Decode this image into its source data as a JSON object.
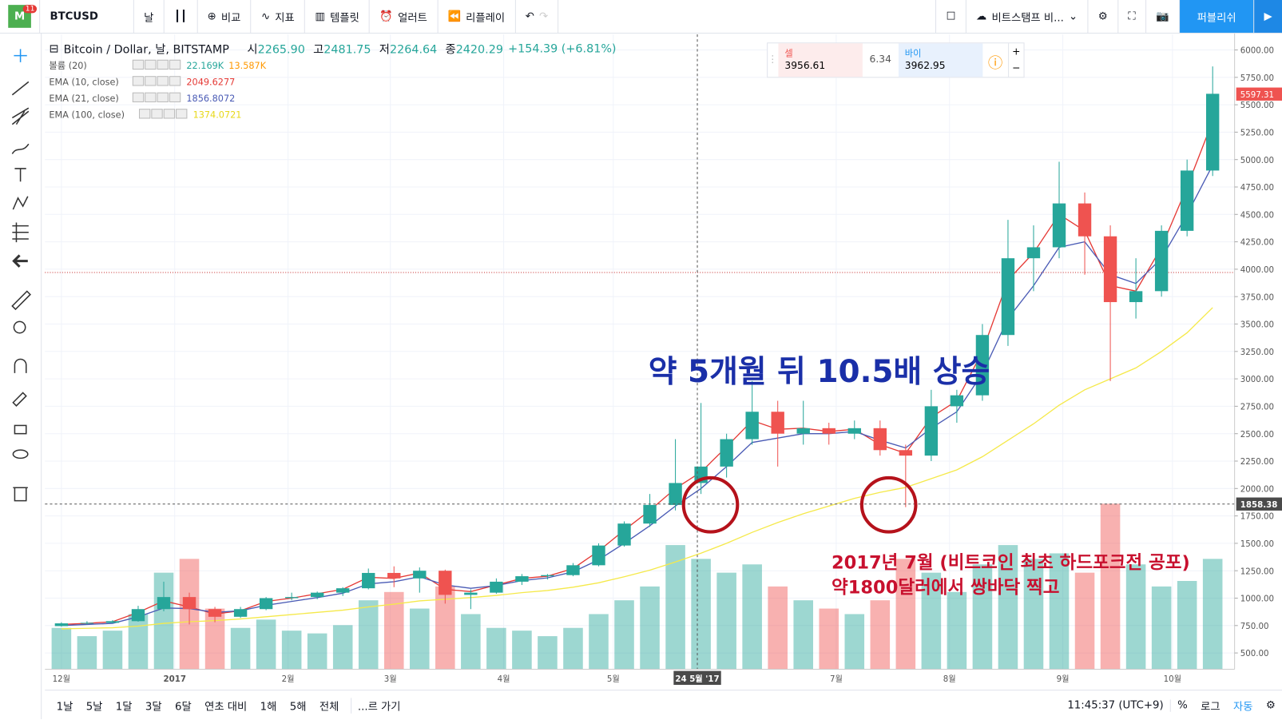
{
  "toolbar": {
    "logo": "M",
    "badge": "11",
    "symbol": "BTCUSD",
    "interval": "날",
    "compare": "비교",
    "indicators": "지표",
    "templates": "템플릿",
    "alert": "얼러트",
    "replay": "리플레이",
    "exchange": "비트스탬프 비...",
    "publish": "퍼블리쉬"
  },
  "legend": {
    "title": "Bitcoin / Dollar, 날, BITSTAMP",
    "ohlc": [
      {
        "label": "시",
        "value": "2265.90"
      },
      {
        "label": "고",
        "value": "2481.75"
      },
      {
        "label": "저",
        "value": "2264.64"
      },
      {
        "label": "종",
        "value": "2420.29"
      }
    ],
    "change": "+154.39 (+6.81%)",
    "indicators": [
      {
        "name": "볼륨 (20)",
        "values": [
          "22.169K",
          "13.587K"
        ]
      },
      {
        "name": "EMA (10, close)",
        "values": [
          "2049.6277"
        ]
      },
      {
        "name": "EMA (21, close)",
        "values": [
          "1856.8072"
        ]
      },
      {
        "name": "EMA (100, close)",
        "values": [
          "1374.0721"
        ]
      }
    ]
  },
  "trade": {
    "sell_label": "셀",
    "sell": "3956.61",
    "spread": "6.34",
    "buy_label": "바이",
    "buy": "3962.95"
  },
  "chart_data": {
    "type": "candlestick",
    "x": [
      0,
      7,
      14,
      21,
      28,
      35,
      42,
      49,
      56,
      63,
      70,
      77,
      84,
      91,
      98,
      105,
      112,
      119,
      126,
      133,
      140,
      147,
      154,
      161,
      168,
      175,
      182,
      189,
      196,
      203,
      210,
      217,
      224,
      231,
      238,
      245,
      252,
      259,
      266,
      273,
      280,
      287,
      294,
      301,
      308,
      315
    ],
    "open": [
      745,
      770,
      775,
      790,
      900,
      1010,
      900,
      830,
      900,
      1000,
      1010,
      1050,
      1090,
      1230,
      1180,
      1250,
      1030,
      1050,
      1150,
      1200,
      1210,
      1300,
      1480,
      1680,
      1850,
      2050,
      2200,
      2450,
      2700,
      2500,
      2550,
      2500,
      2550,
      2350,
      2300,
      2750,
      2850,
      3400,
      4100,
      4200,
      4600,
      4300,
      3700,
      3800,
      4350,
      4900
    ],
    "high": [
      780,
      790,
      800,
      930,
      1150,
      1050,
      920,
      920,
      1010,
      1050,
      1060,
      1100,
      1270,
      1290,
      1280,
      1260,
      1080,
      1180,
      1220,
      1220,
      1320,
      1500,
      1700,
      1950,
      2450,
      2780,
      2500,
      2980,
      2800,
      2800,
      2600,
      2620,
      2620,
      2400,
      2900,
      2900,
      3500,
      4450,
      4400,
      4980,
      4700,
      4400,
      4100,
      4400,
      5000,
      5850
    ],
    "low": [
      740,
      760,
      770,
      785,
      880,
      760,
      780,
      820,
      890,
      980,
      990,
      1020,
      1080,
      1100,
      1050,
      950,
      900,
      1040,
      1120,
      1170,
      1200,
      1290,
      1470,
      1650,
      1800,
      1950,
      2100,
      2400,
      2200,
      2400,
      2400,
      2450,
      2300,
      1830,
      2250,
      2600,
      2800,
      3300,
      3800,
      4100,
      3950,
      2980,
      3550,
      3750,
      4300,
      4850
    ],
    "close": [
      770,
      775,
      790,
      900,
      1010,
      900,
      830,
      900,
      1000,
      1010,
      1050,
      1090,
      1230,
      1180,
      1250,
      1030,
      1050,
      1150,
      1200,
      1210,
      1300,
      1480,
      1680,
      1850,
      2050,
      2200,
      2450,
      2700,
      2500,
      2550,
      2500,
      2550,
      2350,
      2300,
      2750,
      2850,
      3400,
      4100,
      4200,
      4600,
      4300,
      3700,
      3800,
      4350,
      4900,
      5600
    ],
    "up_color": "#26a69a",
    "down_color": "#ef5350",
    "series": [
      {
        "name": "EMA (10, close)",
        "color": "#e53935",
        "values": [
          760,
          770,
          785,
          870,
          975,
          920,
          855,
          885,
          970,
          1000,
          1040,
          1080,
          1190,
          1180,
          1230,
          1080,
          1060,
          1120,
          1180,
          1200,
          1270,
          1430,
          1620,
          1800,
          2000,
          2150,
          2380,
          2620,
          2540,
          2550,
          2520,
          2540,
          2400,
          2320,
          2650,
          2800,
          3250,
          3900,
          4150,
          4500,
          4350,
          3850,
          3800,
          4200,
          4750,
          5350
        ]
      },
      {
        "name": "EMA (21, close)",
        "color": "#4a5bb5",
        "values": [
          750,
          760,
          770,
          830,
          910,
          905,
          870,
          885,
          935,
          970,
          1005,
          1045,
          1130,
          1150,
          1195,
          1120,
          1090,
          1115,
          1160,
          1185,
          1240,
          1350,
          1500,
          1660,
          1840,
          2000,
          2200,
          2420,
          2460,
          2500,
          2500,
          2520,
          2440,
          2370,
          2550,
          2700,
          3050,
          3550,
          3850,
          4200,
          4250,
          3950,
          3870,
          4100,
          4500,
          4950
        ]
      },
      {
        "name": "EMA (100, close)",
        "color": "#f5e94a",
        "values": [
          720,
          725,
          730,
          745,
          770,
          785,
          795,
          810,
          830,
          850,
          870,
          890,
          920,
          945,
          975,
          990,
          1005,
          1025,
          1050,
          1070,
          1100,
          1140,
          1195,
          1255,
          1330,
          1410,
          1500,
          1600,
          1690,
          1770,
          1840,
          1910,
          1965,
          2010,
          2090,
          2170,
          2290,
          2440,
          2590,
          2760,
          2900,
          3000,
          3100,
          3250,
          3420,
          3650
        ]
      }
    ],
    "volume": [
      15,
      12,
      14,
      20,
      35,
      40,
      22,
      15,
      18,
      14,
      13,
      16,
      25,
      28,
      22,
      30,
      20,
      15,
      14,
      12,
      15,
      20,
      25,
      30,
      45,
      40,
      35,
      38,
      30,
      25,
      22,
      20,
      25,
      40,
      35,
      28,
      38,
      45,
      40,
      42,
      35,
      60,
      38,
      30,
      32,
      40
    ],
    "volume_ylim": [
      0,
      230
    ],
    "xlim": [
      -4.5,
      321
    ],
    "xticks": [
      {
        "value": 0,
        "label": "12월"
      },
      {
        "value": 31,
        "label": "2017"
      },
      {
        "value": 62,
        "label": "2월"
      },
      {
        "value": 90,
        "label": "3월"
      },
      {
        "value": 121,
        "label": "4월"
      },
      {
        "value": 151,
        "label": "5월"
      },
      {
        "value": 212,
        "label": "7월"
      },
      {
        "value": 243,
        "label": "8월"
      },
      {
        "value": 274,
        "label": "9월"
      },
      {
        "value": 304,
        "label": "10월"
      }
    ],
    "ylim": [
      351,
      6142
    ],
    "yticks": [
      {
        "value": 500,
        "label": "500.00"
      },
      {
        "value": 750,
        "label": "750.00"
      },
      {
        "value": 1000,
        "label": "1000.00"
      },
      {
        "value": 1250,
        "label": "1250.00"
      },
      {
        "value": 1500,
        "label": "1500.00"
      },
      {
        "value": 1750,
        "label": "1750.00"
      },
      {
        "value": 2000,
        "label": "2000.00"
      },
      {
        "value": 2250,
        "label": "2250.00"
      },
      {
        "value": 2500,
        "label": "2500.00"
      },
      {
        "value": 2750,
        "label": "2750.00"
      },
      {
        "value": 3000,
        "label": "3000.00"
      },
      {
        "value": 3250,
        "label": "3250.00"
      },
      {
        "value": 3500,
        "label": "3500.00"
      },
      {
        "value": 3750,
        "label": "3750.00"
      },
      {
        "value": 4000,
        "label": "4000.00"
      },
      {
        "value": 4250,
        "label": "4250.00"
      },
      {
        "value": 4500,
        "label": "4500.00"
      },
      {
        "value": 4750,
        "label": "4750.00"
      },
      {
        "value": 5000,
        "label": "5000.00"
      },
      {
        "value": 5250,
        "label": "5250.00"
      },
      {
        "value": 5500,
        "label": "5500.00"
      },
      {
        "value": 5750,
        "label": "5750.00"
      },
      {
        "value": 6000,
        "label": "6000.00"
      }
    ],
    "grid": true,
    "last_price": {
      "value": 5597.31,
      "label": "5597.31"
    },
    "crosshair": {
      "x": 174,
      "x_label": "24 5월 '17",
      "y": 1858.38,
      "y_label": "1858.38"
    },
    "level_line": 3970,
    "annotations": {
      "headline": "약 5개월 뒤 10.5배 상승",
      "note": [
        "2017년 7월 (비트코인 최초 하드포크전 공포)",
        "약1800달러에서 쌍바닥 찍고"
      ]
    }
  },
  "bottom_bar": {
    "ranges": [
      "1날",
      "5날",
      "1달",
      "3달",
      "6달",
      "연초 대비",
      "1해",
      "5해",
      "전체"
    ],
    "goto": "...르 가기",
    "time": "11:45:37 (UTC+9)",
    "percent": "%",
    "log": "로그",
    "auto": "자동"
  }
}
